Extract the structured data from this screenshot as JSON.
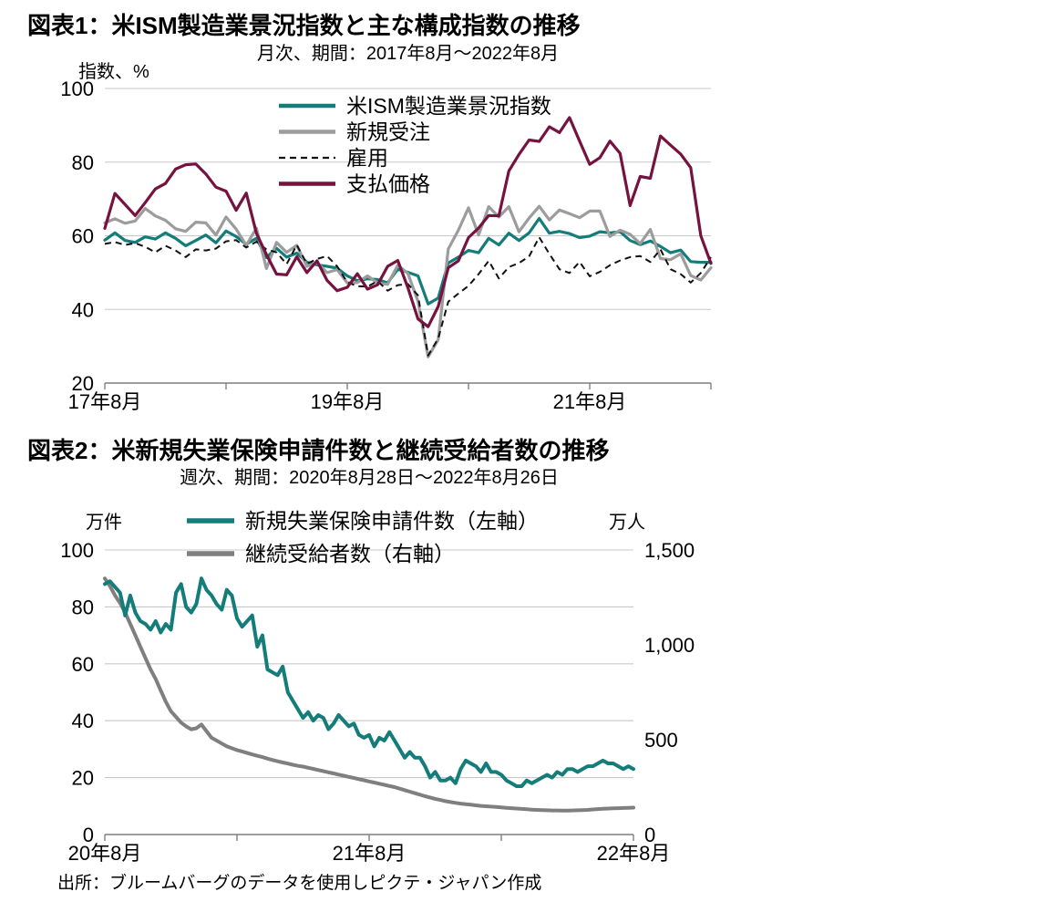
{
  "source": "出所：ブルームバーグのデータを使用しピクテ・ジャパン作成",
  "chart_style": {
    "grid": "#c8c8c8",
    "axis": "#7f7f7f",
    "tick_text": "#000000",
    "background": "#ffffff"
  },
  "chart_data": [
    {
      "type": "line",
      "title": "図表1：米ISM製造業景況指数と主な構成指数の推移",
      "subtitle": "月次、期間：2017年8月～2022年8月",
      "unit_left": "指数、%",
      "ylim": [
        20,
        100
      ],
      "y_ticks": [
        {
          "v": 100,
          "label": "100"
        },
        {
          "v": 80,
          "label": "80"
        },
        {
          "v": 60,
          "label": "60"
        },
        {
          "v": 40,
          "label": "40"
        },
        {
          "v": 20,
          "label": "20"
        }
      ],
      "x_ticks": [
        {
          "pos": 0,
          "label": "17年8月"
        },
        {
          "pos": 24,
          "label": "19年8月"
        },
        {
          "pos": 48,
          "label": "21年8月"
        }
      ],
      "x_axis_ticks": [
        0,
        12,
        24,
        36,
        48,
        60
      ],
      "n_points": 61,
      "grid": "horizontal",
      "legend_position": "inside-top-left",
      "series": [
        {
          "name": "米ISM製造業景況指数",
          "color": "#147d7a",
          "width": 3.2,
          "dash": null,
          "values": [
            58.8,
            60.8,
            58.7,
            58.2,
            59.7,
            59.1,
            60.8,
            59.3,
            57.3,
            58.7,
            60.2,
            58.1,
            61.3,
            59.8,
            57.7,
            59.3,
            54.1,
            56.6,
            54.2,
            55.3,
            52.8,
            52.1,
            51.7,
            51.2,
            49.1,
            47.8,
            48.3,
            48.1,
            47.2,
            50.9,
            50.1,
            49.1,
            41.5,
            43.1,
            52.6,
            54.2,
            56.0,
            55.4,
            59.3,
            57.5,
            60.7,
            58.7,
            60.8,
            64.7,
            60.7,
            61.2,
            60.6,
            59.5,
            59.9,
            61.1,
            60.8,
            61.1,
            58.7,
            57.6,
            58.6,
            57.1,
            55.4,
            56.1,
            53.0,
            52.8,
            52.8
          ]
        },
        {
          "name": "新規受注",
          "color": "#9c9c9c",
          "width": 3.2,
          "dash": null,
          "values": [
            63.5,
            64.6,
            63.4,
            64.0,
            67.4,
            65.4,
            64.2,
            61.9,
            61.2,
            63.7,
            63.5,
            60.2,
            65.1,
            61.8,
            57.4,
            62.1,
            51.1,
            58.2,
            55.5,
            57.4,
            51.7,
            52.7,
            50.0,
            50.8,
            47.2,
            47.3,
            49.1,
            47.2,
            46.8,
            52.0,
            49.8,
            42.2,
            27.1,
            31.8,
            56.4,
            61.5,
            67.6,
            60.2,
            67.9,
            65.1,
            67.9,
            61.1,
            64.8,
            68.0,
            64.3,
            67.0,
            66.0,
            64.9,
            66.7,
            66.7,
            59.8,
            61.5,
            60.4,
            57.9,
            61.7,
            53.8,
            53.5,
            55.1,
            49.2,
            48.0,
            51.3
          ]
        },
        {
          "name": "雇用",
          "color": "#111111",
          "width": 2,
          "dash": "7,5",
          "values": [
            57.8,
            58.3,
            57.5,
            58.0,
            57.0,
            55.5,
            57.3,
            56.0,
            54.2,
            56.3,
            56.0,
            56.5,
            58.5,
            58.8,
            56.8,
            58.4,
            56.3,
            55.5,
            52.3,
            57.5,
            52.4,
            53.7,
            54.5,
            51.7,
            47.4,
            46.3,
            46.2,
            47.7,
            45.1,
            46.6,
            46.9,
            43.8,
            27.5,
            32.1,
            42.1,
            44.3,
            46.4,
            49.6,
            53.2,
            48.4,
            51.5,
            52.6,
            54.4,
            59.6,
            55.1,
            50.9,
            49.9,
            52.9,
            49.0,
            50.2,
            52.0,
            53.3,
            54.2,
            54.5,
            52.9,
            56.3,
            50.9,
            49.6,
            47.3,
            49.9,
            54.2
          ]
        },
        {
          "name": "支払価格",
          "color": "#75123f",
          "width": 3.2,
          "dash": null,
          "values": [
            62.0,
            71.5,
            68.5,
            65.5,
            69.0,
            72.7,
            74.2,
            78.1,
            79.3,
            79.5,
            76.8,
            73.2,
            72.1,
            66.9,
            71.6,
            60.7,
            54.9,
            49.6,
            49.4,
            54.3,
            50.0,
            53.2,
            47.9,
            45.1,
            46.0,
            49.7,
            45.5,
            46.7,
            51.7,
            53.3,
            45.9,
            37.4,
            35.3,
            40.8,
            51.3,
            53.2,
            59.5,
            62.1,
            65.5,
            65.4,
            77.6,
            82.1,
            86.0,
            85.6,
            89.6,
            88.0,
            92.1,
            85.7,
            79.4,
            81.2,
            85.7,
            82.4,
            68.2,
            76.1,
            75.6,
            87.1,
            84.6,
            82.2,
            78.5,
            60.0,
            52.5
          ]
        }
      ]
    },
    {
      "type": "line",
      "title": "図表2：米新規失業保険申請件数と継続受給者数の推移",
      "subtitle": "週次、期間：2020年8月28日～2022年8月26日",
      "unit_left": "万件",
      "unit_right": "万人",
      "ylim_left": [
        0,
        100
      ],
      "ylim_right": [
        0,
        1500
      ],
      "y_ticks_left": [
        {
          "v": 100,
          "label": "100"
        },
        {
          "v": 80,
          "label": "80"
        },
        {
          "v": 60,
          "label": "60"
        },
        {
          "v": 40,
          "label": "40"
        },
        {
          "v": 20,
          "label": "20"
        },
        {
          "v": 0,
          "label": "0"
        }
      ],
      "y_ticks_right": [
        {
          "v": 1500,
          "label": "1,500"
        },
        {
          "v": 1000,
          "label": "1,000"
        },
        {
          "v": 500,
          "label": "500"
        },
        {
          "v": 0,
          "label": "0"
        }
      ],
      "x_ticks": [
        {
          "pos": 0,
          "label": "20年8月"
        },
        {
          "pos": 52,
          "label": "21年8月"
        },
        {
          "pos": 104,
          "label": "22年8月"
        }
      ],
      "x_axis_ticks": [
        0,
        26,
        52,
        78,
        104
      ],
      "n_points": 105,
      "grid": "horizontal",
      "legend_position": "top",
      "series": [
        {
          "name": "新規失業保険申請件数（左軸）",
          "axis": "left",
          "color": "#147d7a",
          "width": 4,
          "dash": null,
          "values": [
            88,
            89,
            87,
            85,
            77,
            84,
            78,
            75,
            74,
            72,
            75,
            71,
            74,
            72,
            85,
            88,
            80,
            78,
            81,
            90,
            86,
            84,
            81,
            79,
            86,
            84,
            76,
            73,
            75,
            77,
            66,
            70,
            58,
            57,
            56,
            59,
            50,
            47,
            44,
            41,
            43,
            40,
            42,
            41,
            37,
            39,
            42,
            40,
            38,
            39,
            35,
            34,
            35,
            31,
            34,
            33,
            36,
            33,
            30,
            27,
            29,
            27,
            27,
            24,
            20,
            22,
            19,
            19,
            20,
            18,
            23,
            26,
            25,
            24,
            22,
            25,
            22,
            22,
            21,
            19,
            18,
            17,
            17,
            19,
            18,
            19,
            20,
            21,
            20,
            22,
            21,
            23,
            23,
            22,
            23,
            24,
            24,
            25,
            26,
            25,
            25,
            24,
            23,
            24,
            23
          ]
        },
        {
          "name": "継続受給者数（右軸）",
          "axis": "right",
          "color": "#7f7f7f",
          "width": 4,
          "dash": null,
          "values": [
            1350,
            1310,
            1260,
            1220,
            1170,
            1110,
            1050,
            990,
            930,
            870,
            820,
            760,
            700,
            650,
            620,
            590,
            570,
            555,
            560,
            580,
            545,
            510,
            495,
            480,
            465,
            455,
            445,
            438,
            430,
            422,
            415,
            408,
            400,
            393,
            386,
            380,
            374,
            368,
            362,
            358,
            352,
            346,
            340,
            334,
            328,
            322,
            316,
            310,
            304,
            298,
            292,
            286,
            280,
            274,
            268,
            262,
            256,
            250,
            242,
            234,
            226,
            218,
            210,
            202,
            195,
            188,
            182,
            176,
            171,
            167,
            163,
            160,
            157,
            154,
            151,
            149,
            147,
            145,
            143,
            141,
            139,
            137,
            135,
            133,
            131,
            130,
            129,
            128,
            127,
            127,
            126,
            126,
            127,
            128,
            129,
            130,
            132,
            134,
            136,
            137,
            138,
            139,
            140,
            141,
            142
          ]
        }
      ]
    }
  ]
}
